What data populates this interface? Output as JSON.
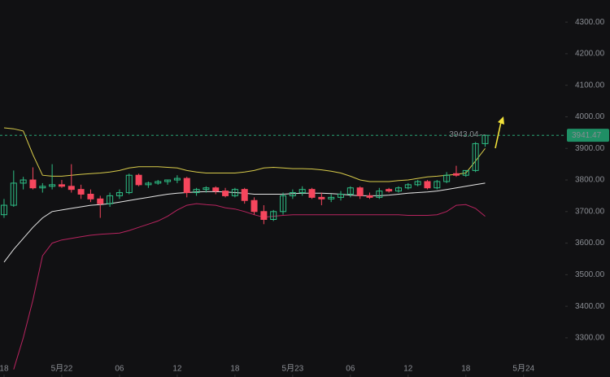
{
  "chart_data": {
    "type": "candlestick",
    "x": [
      0,
      1,
      2,
      3,
      4,
      5,
      6,
      7,
      8,
      9,
      10,
      11,
      12,
      13,
      14,
      15,
      16,
      17,
      18,
      19,
      20,
      21,
      22,
      23,
      24,
      25,
      26,
      27,
      28,
      29,
      30,
      31,
      32,
      33,
      34,
      35,
      36,
      37,
      38,
      39,
      40,
      41,
      42,
      43,
      44,
      45,
      46,
      47,
      48,
      49,
      50
    ],
    "open": [
      3690,
      3720,
      3790,
      3800,
      3775,
      3780,
      3785,
      3780,
      3770,
      3755,
      3740,
      3725,
      3750,
      3760,
      3815,
      3785,
      3790,
      3795,
      3800,
      3805,
      3760,
      3770,
      3775,
      3765,
      3750,
      3770,
      3735,
      3700,
      3675,
      3700,
      3750,
      3760,
      3770,
      3745,
      3740,
      3745,
      3755,
      3775,
      3750,
      3745,
      3770,
      3765,
      3775,
      3785,
      3795,
      3775,
      3795,
      3820,
      3815,
      3830,
      3915
    ],
    "high": [
      3740,
      3830,
      3810,
      3840,
      3790,
      3850,
      3800,
      3850,
      3785,
      3770,
      3750,
      3760,
      3770,
      3820,
      3820,
      3795,
      3800,
      3800,
      3815,
      3810,
      3775,
      3780,
      3780,
      3775,
      3775,
      3775,
      3745,
      3720,
      3705,
      3760,
      3770,
      3780,
      3775,
      3760,
      3755,
      3765,
      3780,
      3780,
      3760,
      3775,
      3775,
      3780,
      3790,
      3800,
      3800,
      3800,
      3825,
      3845,
      3830,
      3920,
      3943.04
    ],
    "low": [
      3680,
      3715,
      3770,
      3770,
      3760,
      3770,
      3775,
      3760,
      3740,
      3730,
      3680,
      3715,
      3740,
      3755,
      3780,
      3775,
      3785,
      3785,
      3790,
      3745,
      3750,
      3760,
      3755,
      3745,
      3745,
      3725,
      3690,
      3660,
      3670,
      3690,
      3740,
      3750,
      3740,
      3720,
      3730,
      3735,
      3745,
      3740,
      3740,
      3740,
      3760,
      3760,
      3770,
      3780,
      3770,
      3770,
      3790,
      3810,
      3810,
      3825,
      3905
    ],
    "close": [
      3720,
      3790,
      3800,
      3775,
      3780,
      3785,
      3780,
      3770,
      3755,
      3740,
      3725,
      3750,
      3760,
      3815,
      3785,
      3790,
      3795,
      3800,
      3805,
      3760,
      3770,
      3775,
      3765,
      3750,
      3770,
      3735,
      3700,
      3675,
      3700,
      3750,
      3760,
      3770,
      3745,
      3740,
      3745,
      3755,
      3775,
      3750,
      3745,
      3765,
      3765,
      3775,
      3785,
      3795,
      3775,
      3795,
      3815,
      3815,
      3830,
      3915,
      3941.47
    ],
    "up_color": "#2ebd85",
    "down_color": "#f6465d",
    "series": [
      {
        "color": "#d8cb4a",
        "values": [
          3965,
          3962,
          3955,
          3880,
          3815,
          3812,
          3812,
          3815,
          3818,
          3820,
          3822,
          3825,
          3830,
          3838,
          3842,
          3842,
          3842,
          3840,
          3838,
          3830,
          3825,
          3822,
          3822,
          3822,
          3822,
          3825,
          3830,
          3838,
          3840,
          3838,
          3836,
          3836,
          3835,
          3832,
          3828,
          3822,
          3812,
          3800,
          3795,
          3795,
          3795,
          3798,
          3800,
          3805,
          3810,
          3812,
          3815,
          3818,
          3822,
          3860,
          3900
        ]
      },
      {
        "color": "#e6e6e6",
        "values": [
          3540,
          3580,
          3615,
          3650,
          3680,
          3700,
          3705,
          3710,
          3715,
          3720,
          3722,
          3725,
          3730,
          3735,
          3740,
          3745,
          3750,
          3755,
          3758,
          3760,
          3762,
          3763,
          3763,
          3762,
          3760,
          3758,
          3755,
          3755,
          3755,
          3755,
          3757,
          3758,
          3758,
          3758,
          3757,
          3755,
          3752,
          3750,
          3750,
          3750,
          3752,
          3755,
          3758,
          3760,
          3762,
          3765,
          3770,
          3775,
          3780,
          3785,
          3790
        ]
      },
      {
        "color": "#b8245f",
        "values": [
          null,
          3200,
          3300,
          3420,
          3560,
          3600,
          3610,
          3615,
          3620,
          3625,
          3628,
          3630,
          3632,
          3640,
          3650,
          3660,
          3670,
          3685,
          3705,
          3720,
          3725,
          3722,
          3720,
          3712,
          3708,
          3700,
          3690,
          3682,
          3685,
          3688,
          3690,
          3690,
          3690,
          3690,
          3690,
          3690,
          3690,
          3690,
          3690,
          3690,
          3690,
          3690,
          3688,
          3688,
          3688,
          3690,
          3700,
          3720,
          3722,
          3710,
          3685
        ]
      }
    ],
    "xlim": [
      -0.42,
      58.33
    ],
    "xticks": [
      {
        "value": 0,
        "label": "18"
      },
      {
        "value": 6,
        "label": "5月22"
      },
      {
        "value": 12,
        "label": "06"
      },
      {
        "value": 18,
        "label": "12"
      },
      {
        "value": 24,
        "label": "18"
      },
      {
        "value": 30,
        "label": "5月23"
      },
      {
        "value": 36,
        "label": "06"
      },
      {
        "value": 42,
        "label": "12"
      },
      {
        "value": 48,
        "label": "18"
      },
      {
        "value": 54,
        "label": "5月24"
      }
    ],
    "ylim": [
      3176,
      4370
    ],
    "yticks": [
      {
        "value": 3300,
        "label": "3300.00"
      },
      {
        "value": 3400,
        "label": "3400.00"
      },
      {
        "value": 3500,
        "label": "3500.00"
      },
      {
        "value": 3600,
        "label": "3600.00"
      },
      {
        "value": 3700,
        "label": "3700.00"
      },
      {
        "value": 3800,
        "label": "3800.00"
      },
      {
        "value": 3900,
        "label": "3900.00"
      },
      {
        "value": 4000,
        "label": "4000.00"
      },
      {
        "value": 4100,
        "label": "4100.00"
      },
      {
        "value": 4200,
        "label": "4200.00"
      },
      {
        "value": 4300,
        "label": "4300.00"
      }
    ],
    "grid": false
  }
}
